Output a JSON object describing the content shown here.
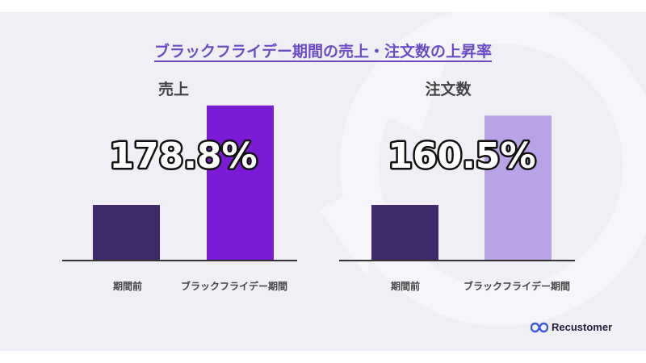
{
  "title": "ブラックフライデー期間の売上・注文数の上昇率",
  "brand": {
    "name": "Recustomer",
    "icon": "infinity-logo-icon",
    "color": "#3d5ad8"
  },
  "colors": {
    "background": "#f0eff6",
    "title": "#6c4cc4",
    "axis": "#333333"
  },
  "chart_data": [
    {
      "type": "bar",
      "title": "売上",
      "categories": [
        "期間前",
        "ブラックフライデー期間"
      ],
      "values": [
        100,
        278.8
      ],
      "colors": [
        "#3e2a68",
        "#7a1bd6"
      ],
      "annotation": "178.8%",
      "ylim": [
        0,
        290
      ]
    },
    {
      "type": "bar",
      "title": "注文数",
      "categories": [
        "期間前",
        "ブラックフライデー期間"
      ],
      "values": [
        100,
        260.5
      ],
      "colors": [
        "#3e2a68",
        "#b9a3e6"
      ],
      "annotation": "160.5%",
      "ylim": [
        0,
        290
      ]
    }
  ]
}
